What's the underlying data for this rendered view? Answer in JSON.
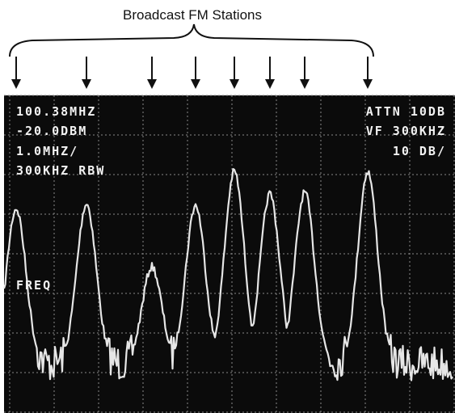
{
  "header": {
    "title": "Broadcast FM Stations"
  },
  "readouts": {
    "left": [
      "100.38MHZ",
      "-20.0DBM",
      "1.0MHZ/",
      "300KHZ RBW"
    ],
    "right": [
      "ATTN 10DB",
      "VF 300KHZ",
      "10 DB/"
    ]
  },
  "marker_label": "FREQ"
}
